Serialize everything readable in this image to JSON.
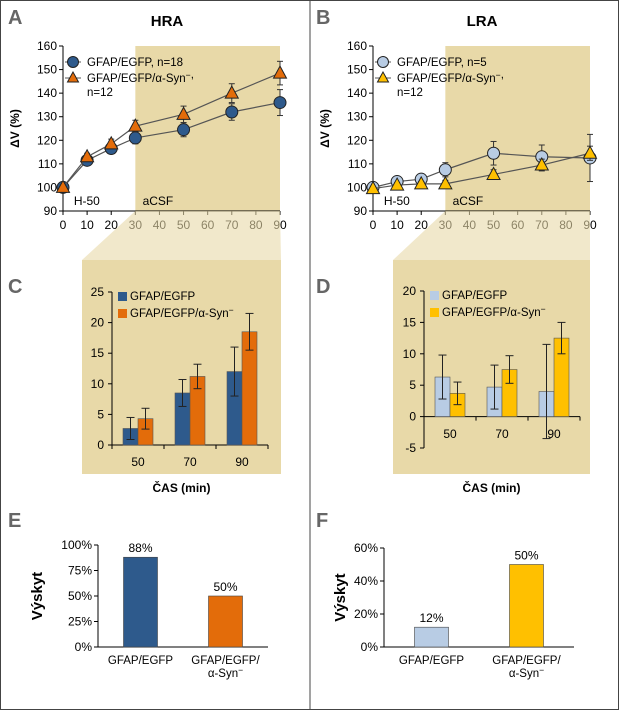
{
  "colors": {
    "hra_dark": "#2e5a8c",
    "hra_orange": "#e36c0a",
    "lra_light": "#b8cce4",
    "lra_yellow": "#ffc000",
    "tan": "#e8d9a8",
    "line": "#555555"
  },
  "panel_letters": [
    "A",
    "B",
    "C",
    "D",
    "E",
    "F"
  ],
  "chart_data": [
    {
      "id": "A",
      "type": "line",
      "title": "HRA",
      "ylabel": "ΔV (%)",
      "xlim": [
        0,
        90
      ],
      "ylim": [
        90,
        160
      ],
      "xticks": [
        0,
        10,
        20,
        30,
        40,
        50,
        60,
        70,
        80,
        90
      ],
      "yticks": [
        90,
        100,
        110,
        120,
        130,
        140,
        150,
        160
      ],
      "x": [
        0,
        10,
        20,
        30,
        50,
        70,
        90
      ],
      "shade_from": 30,
      "annotations": [
        "H-50",
        "aCSF"
      ],
      "series": [
        {
          "name": "GFAP/EGFP",
          "n_label": "n=18",
          "marker": "circle",
          "values": [
            100,
            111.5,
            116.5,
            121,
            124.5,
            132,
            136
          ],
          "errors": [
            0,
            1.5,
            2,
            2.5,
            3,
            3.5,
            5.5
          ]
        },
        {
          "name": "GFAP/EGFP/α-Syn⁻",
          "n_label": "n=12",
          "marker": "triangle",
          "values": [
            100,
            113,
            118.5,
            126,
            131,
            140,
            148.5
          ],
          "errors": [
            0,
            1.5,
            2,
            2.5,
            3.5,
            4,
            5
          ]
        }
      ]
    },
    {
      "id": "B",
      "type": "line",
      "title": "LRA",
      "ylabel": "ΔV (%)",
      "xlim": [
        0,
        90
      ],
      "ylim": [
        90,
        160
      ],
      "xticks": [
        0,
        10,
        20,
        30,
        40,
        50,
        60,
        70,
        80,
        90
      ],
      "yticks": [
        90,
        100,
        110,
        120,
        130,
        140,
        150,
        160
      ],
      "x": [
        0,
        10,
        20,
        30,
        50,
        70,
        90
      ],
      "shade_from": 30,
      "annotations": [
        "H-50",
        "aCSF"
      ],
      "series": [
        {
          "name": "GFAP/EGFP",
          "n_label": "n=5",
          "marker": "circle",
          "values": [
            100,
            102.5,
            103.5,
            107.5,
            114.5,
            113,
            112.5
          ],
          "errors": [
            0,
            1,
            1.5,
            3,
            5,
            5,
            10
          ]
        },
        {
          "name": "GFAP/EGFP/α-Syn⁻",
          "n_label": "n=12",
          "marker": "triangle",
          "values": [
            99.5,
            101,
            101.5,
            101.5,
            105.5,
            109.5,
            114.5
          ],
          "errors": [
            0,
            1,
            1,
            1.5,
            2,
            2.5,
            3
          ]
        }
      ]
    },
    {
      "id": "C",
      "type": "bar",
      "categories": [
        "50",
        "70",
        "90"
      ],
      "xlabel": "ČAS (min)",
      "ylim": [
        0,
        25
      ],
      "yticks": [
        0,
        5,
        10,
        15,
        20,
        25
      ],
      "series": [
        {
          "name": "GFAP/EGFP",
          "values": [
            2.7,
            8.5,
            12
          ],
          "errors": [
            1.8,
            2.2,
            4
          ]
        },
        {
          "name": "GFAP/EGFP/α-Syn⁻",
          "values": [
            4.3,
            11.2,
            18.5
          ],
          "errors": [
            1.7,
            2,
            3
          ]
        }
      ]
    },
    {
      "id": "D",
      "type": "bar",
      "categories": [
        "50",
        "70",
        "90"
      ],
      "xlabel": "ČAS (min)",
      "ylim": [
        -5,
        20
      ],
      "yticks": [
        -5,
        0,
        5,
        10,
        15,
        20
      ],
      "series": [
        {
          "name": "GFAP/EGFP",
          "values": [
            6.3,
            4.7,
            4
          ],
          "errors": [
            3.5,
            3.5,
            7.5
          ]
        },
        {
          "name": "GFAP/EGFP/α-Syn⁻",
          "values": [
            3.7,
            7.5,
            12.5
          ],
          "errors": [
            1.8,
            2.2,
            2.5
          ]
        }
      ]
    },
    {
      "id": "E",
      "type": "bar",
      "ylabel": "Výskyt",
      "ylim": [
        0,
        100
      ],
      "yticks": [
        0,
        25,
        50,
        75,
        100
      ],
      "ytick_labels": [
        "0%",
        "25%",
        "50%",
        "75%",
        "100%"
      ],
      "categories": [
        "GFAP/EGFP",
        "GFAP/EGFP/ α-Syn⁻"
      ],
      "category_lines": [
        [
          "GFAP/EGFP"
        ],
        [
          "GFAP/EGFP/",
          "α-Syn⁻"
        ]
      ],
      "values": [
        88,
        50
      ],
      "value_labels": [
        "88%",
        "50%"
      ]
    },
    {
      "id": "F",
      "type": "bar",
      "ylabel": "Výskyt",
      "ylim": [
        0,
        60
      ],
      "yticks": [
        0,
        20,
        40,
        60
      ],
      "ytick_labels": [
        "0%",
        "20%",
        "40%",
        "60%"
      ],
      "categories": [
        "GFAP/EGFP",
        "GFAP/EGFP/ α-Syn⁻"
      ],
      "category_lines": [
        [
          "GFAP/EGFP"
        ],
        [
          "GFAP/EGFP/",
          "α-Syn⁻"
        ]
      ],
      "values": [
        12,
        50
      ],
      "value_labels": [
        "12%",
        "50%"
      ]
    }
  ]
}
